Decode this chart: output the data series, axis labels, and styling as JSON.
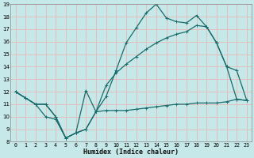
{
  "xlabel": "Humidex (Indice chaleur)",
  "bg_color": "#c6e8e8",
  "grid_color": "#e8b8b8",
  "line_color": "#1a6b6b",
  "xlim": [
    -0.5,
    23.5
  ],
  "ylim": [
    8,
    19
  ],
  "xticks": [
    0,
    1,
    2,
    3,
    4,
    5,
    6,
    7,
    8,
    9,
    10,
    11,
    12,
    13,
    14,
    15,
    16,
    17,
    18,
    19,
    20,
    21,
    22,
    23
  ],
  "yticks": [
    8,
    9,
    10,
    11,
    12,
    13,
    14,
    15,
    16,
    17,
    18,
    19
  ],
  "line1_x": [
    0,
    1,
    2,
    3,
    4,
    5,
    6,
    7,
    8,
    9,
    10,
    11,
    12,
    13,
    14,
    15,
    16,
    17,
    18,
    19,
    20,
    21,
    22,
    23
  ],
  "line1_y": [
    12,
    11.5,
    11,
    11,
    10,
    8.3,
    8.7,
    9,
    10.4,
    10.5,
    10.5,
    10.5,
    10.6,
    10.7,
    10.8,
    10.9,
    11,
    11,
    11.1,
    11.1,
    11.1,
    11.2,
    11.4,
    11.3
  ],
  "line2_x": [
    0,
    1,
    2,
    3,
    4,
    5,
    6,
    7,
    8,
    9,
    10,
    11,
    12,
    13,
    14,
    15,
    16,
    17,
    18,
    19,
    20,
    21,
    22,
    23
  ],
  "line2_y": [
    12,
    11.5,
    11,
    10,
    9.8,
    8.3,
    8.7,
    12.1,
    10.4,
    11.6,
    13.7,
    15.9,
    17.1,
    18.3,
    19.0,
    17.9,
    17.6,
    17.5,
    18.1,
    17.2,
    15.9,
    14.0,
    13.7,
    11.3
  ],
  "line3_x": [
    0,
    1,
    2,
    3,
    4,
    5,
    6,
    7,
    8,
    9,
    10,
    11,
    12,
    13,
    14,
    15,
    16,
    17,
    18,
    19,
    20,
    21,
    22,
    23
  ],
  "line3_y": [
    12,
    11.5,
    11,
    11,
    10,
    8.3,
    8.7,
    9,
    10.4,
    12.5,
    13.5,
    14.2,
    14.8,
    15.4,
    15.9,
    16.3,
    16.6,
    16.8,
    17.3,
    17.2,
    15.9,
    14.0,
    11.4,
    11.3
  ]
}
